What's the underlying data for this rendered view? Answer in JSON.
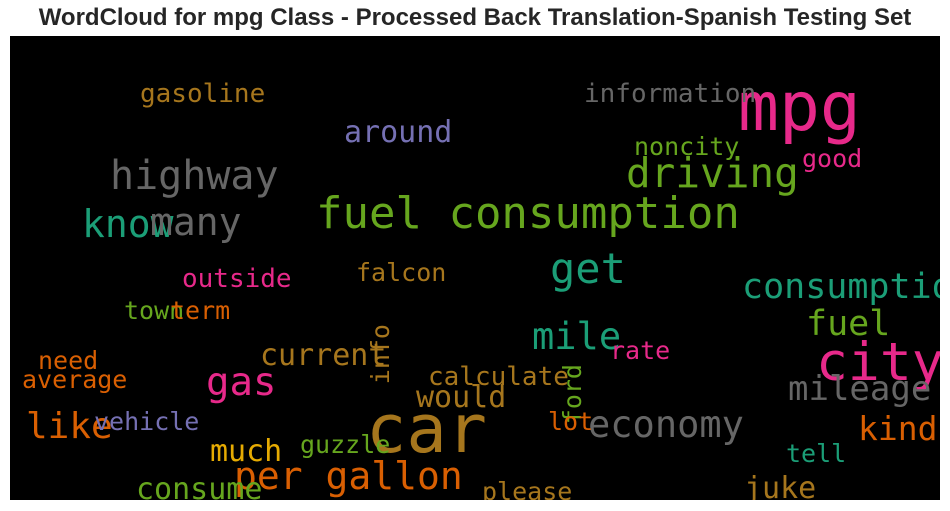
{
  "chart_data": {
    "type": "wordcloud",
    "title": "WordCloud for mpg Class - Processed Back Translation-Spanish Testing Set",
    "background": "#000000",
    "words": [
      {
        "text": "mpg",
        "weight": 1.0,
        "color": "#e7298a"
      },
      {
        "text": "car",
        "weight": 0.98,
        "color": "#a6761d"
      },
      {
        "text": "city",
        "weight": 0.72,
        "color": "#e7298a"
      },
      {
        "text": "fuel consumption",
        "weight": 0.56,
        "color": "#66a61e"
      },
      {
        "text": "get",
        "weight": 0.52,
        "color": "#1b9e77"
      },
      {
        "text": "driving",
        "weight": 0.5,
        "color": "#66a61e"
      },
      {
        "text": "highway",
        "weight": 0.48,
        "color": "#666666"
      },
      {
        "text": "gas",
        "weight": 0.46,
        "color": "#e7298a"
      },
      {
        "text": "per gallon",
        "weight": 0.44,
        "color": "#d95f02"
      },
      {
        "text": "know",
        "weight": 0.44,
        "color": "#1b9e77"
      },
      {
        "text": "many",
        "weight": 0.44,
        "color": "#666666"
      },
      {
        "text": "mile",
        "weight": 0.43,
        "color": "#1b9e77"
      },
      {
        "text": "economy",
        "weight": 0.42,
        "color": "#666666"
      },
      {
        "text": "like",
        "weight": 0.4,
        "color": "#d95f02"
      },
      {
        "text": "fuel",
        "weight": 0.38,
        "color": "#66a61e"
      },
      {
        "text": "consumption",
        "weight": 0.38,
        "color": "#1b9e77"
      },
      {
        "text": "mileage",
        "weight": 0.37,
        "color": "#666666"
      },
      {
        "text": "kind",
        "weight": 0.36,
        "color": "#d95f02"
      },
      {
        "text": "would",
        "weight": 0.3,
        "color": "#a6761d"
      },
      {
        "text": "current",
        "weight": 0.3,
        "color": "#a6761d"
      },
      {
        "text": "consume",
        "weight": 0.3,
        "color": "#66a61e"
      },
      {
        "text": "juke",
        "weight": 0.3,
        "color": "#a6761d"
      },
      {
        "text": "much",
        "weight": 0.3,
        "color": "#e6ab02"
      },
      {
        "text": "around",
        "weight": 0.29,
        "color": "#7570b3"
      },
      {
        "text": "gasoline",
        "weight": 0.22,
        "color": "#a6761d"
      },
      {
        "text": "information",
        "weight": 0.22,
        "color": "#666666"
      },
      {
        "text": "noncity",
        "weight": 0.2,
        "color": "#66a61e"
      },
      {
        "text": "good",
        "weight": 0.2,
        "color": "#e7298a"
      },
      {
        "text": "outside",
        "weight": 0.22,
        "color": "#e7298a"
      },
      {
        "text": "falcon",
        "weight": 0.21,
        "color": "#a6761d"
      },
      {
        "text": "town",
        "weight": 0.21,
        "color": "#66a61e"
      },
      {
        "text": "term",
        "weight": 0.21,
        "color": "#d95f02"
      },
      {
        "text": "info",
        "weight": 0.2,
        "color": "#a6761d",
        "vertical": true
      },
      {
        "text": "rate",
        "weight": 0.2,
        "color": "#e7298a"
      },
      {
        "text": "need",
        "weight": 0.2,
        "color": "#d95f02"
      },
      {
        "text": "average",
        "weight": 0.2,
        "color": "#d95f02"
      },
      {
        "text": "calculate",
        "weight": 0.22,
        "color": "#a6761d"
      },
      {
        "text": "ford",
        "weight": 0.2,
        "color": "#66a61e",
        "vertical": true
      },
      {
        "text": "vehicle",
        "weight": 0.2,
        "color": "#7570b3"
      },
      {
        "text": "lot",
        "weight": 0.2,
        "color": "#d95f02"
      },
      {
        "text": "guzzle",
        "weight": 0.2,
        "color": "#66a61e"
      },
      {
        "text": "tell",
        "weight": 0.2,
        "color": "#1b9e77"
      },
      {
        "text": "please",
        "weight": 0.2,
        "color": "#a6761d"
      }
    ]
  }
}
